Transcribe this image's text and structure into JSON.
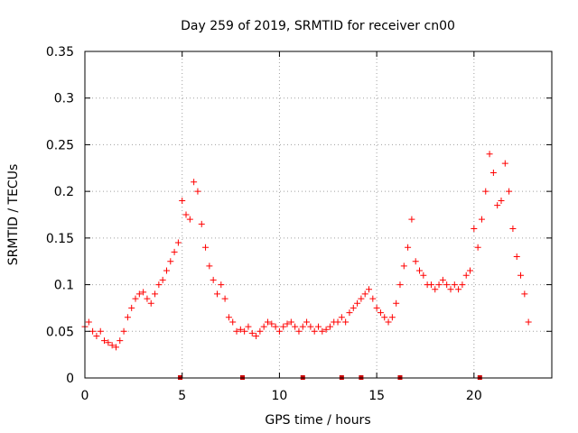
{
  "chart_data": {
    "type": "scatter",
    "title": "Day 259 of 2019, SRMTID for receiver cn00",
    "xlabel": "GPS time / hours",
    "ylabel": "SRMTID / TECUs",
    "xlim": [
      0,
      24
    ],
    "ylim": [
      0,
      0.35
    ],
    "x_ticks": [
      0,
      5,
      10,
      15,
      20
    ],
    "x_tick_labels": [
      "0",
      "5",
      "10",
      "15",
      "20"
    ],
    "y_ticks": [
      0,
      0.05,
      0.1,
      0.15,
      0.2,
      0.25,
      0.3,
      0.35
    ],
    "y_tick_labels": [
      "0",
      "0.05",
      "0.1",
      "0.15",
      "0.2",
      "0.25",
      "0.3",
      "0.35"
    ],
    "grid": true,
    "marker": "+",
    "marker_color": "#ff0000",
    "series": [
      {
        "name": "SRMTID",
        "x": [
          0.0,
          0.2,
          0.4,
          0.6,
          0.8,
          1.0,
          1.2,
          1.4,
          1.6,
          1.8,
          2.0,
          2.2,
          2.4,
          2.6,
          2.8,
          3.0,
          3.2,
          3.4,
          3.6,
          3.8,
          4.0,
          4.2,
          4.4,
          4.6,
          4.8,
          5.0,
          5.2,
          5.4,
          5.6,
          5.8,
          6.0,
          6.2,
          6.4,
          6.6,
          6.8,
          7.0,
          7.2,
          7.4,
          7.6,
          7.8,
          8.0,
          8.2,
          8.4,
          8.6,
          8.8,
          9.0,
          9.2,
          9.4,
          9.6,
          9.8,
          10.0,
          10.2,
          10.4,
          10.6,
          10.8,
          11.0,
          11.2,
          11.4,
          11.6,
          11.8,
          12.0,
          12.2,
          12.4,
          12.6,
          12.8,
          13.0,
          13.2,
          13.4,
          13.6,
          13.8,
          14.0,
          14.2,
          14.4,
          14.6,
          14.8,
          15.0,
          15.2,
          15.4,
          15.6,
          15.8,
          16.0,
          16.2,
          16.4,
          16.6,
          16.8,
          17.0,
          17.2,
          17.4,
          17.6,
          17.8,
          18.0,
          18.2,
          18.4,
          18.6,
          18.8,
          19.0,
          19.2,
          19.4,
          19.6,
          19.8,
          20.0,
          20.2,
          20.4,
          20.6,
          20.8,
          21.0,
          21.2,
          21.4,
          21.6,
          21.8,
          22.0,
          22.2,
          22.4,
          22.6,
          22.8
        ],
        "y": [
          0.055,
          0.06,
          0.05,
          0.045,
          0.05,
          0.04,
          0.038,
          0.035,
          0.033,
          0.04,
          0.05,
          0.065,
          0.075,
          0.085,
          0.09,
          0.092,
          0.085,
          0.08,
          0.09,
          0.1,
          0.105,
          0.115,
          0.125,
          0.135,
          0.145,
          0.19,
          0.175,
          0.17,
          0.21,
          0.2,
          0.165,
          0.14,
          0.12,
          0.105,
          0.09,
          0.1,
          0.085,
          0.065,
          0.06,
          0.05,
          0.052,
          0.05,
          0.055,
          0.048,
          0.045,
          0.05,
          0.055,
          0.06,
          0.058,
          0.055,
          0.05,
          0.055,
          0.058,
          0.06,
          0.055,
          0.05,
          0.055,
          0.06,
          0.055,
          0.05,
          0.055,
          0.05,
          0.052,
          0.055,
          0.06,
          0.06,
          0.065,
          0.06,
          0.07,
          0.075,
          0.08,
          0.085,
          0.09,
          0.095,
          0.085,
          0.075,
          0.07,
          0.065,
          0.06,
          0.065,
          0.08,
          0.1,
          0.12,
          0.14,
          0.17,
          0.125,
          0.115,
          0.11,
          0.1,
          0.1,
          0.095,
          0.1,
          0.105,
          0.1,
          0.095,
          0.1,
          0.095,
          0.1,
          0.11,
          0.115,
          0.16,
          0.14,
          0.17,
          0.2,
          0.24,
          0.22,
          0.185,
          0.19,
          0.23,
          0.2,
          0.16,
          0.13,
          0.11,
          0.09,
          0.06
        ]
      }
    ],
    "axis_markers": {
      "color": "#cc0000",
      "x": [
        4.9,
        8.1,
        11.2,
        13.2,
        14.2,
        16.2,
        20.3
      ]
    }
  }
}
